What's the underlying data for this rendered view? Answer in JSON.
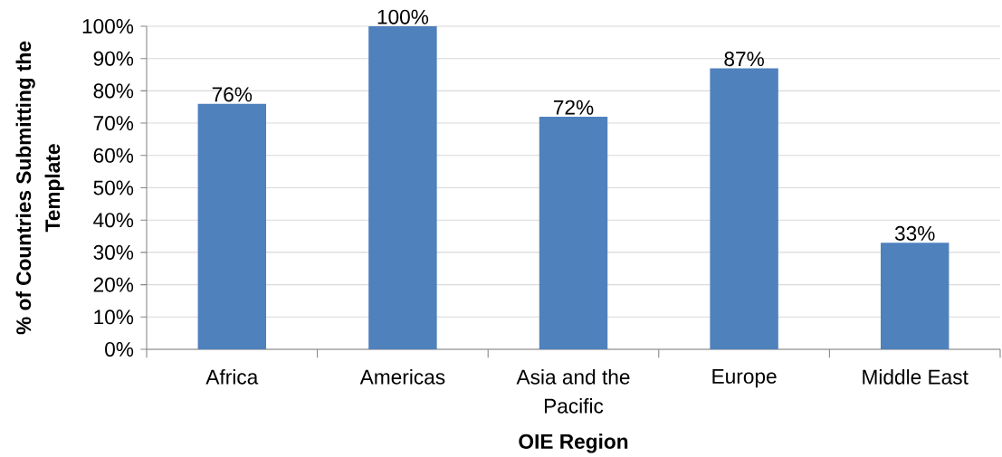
{
  "chart_data": {
    "type": "bar",
    "xlabel": "OIE Region",
    "ylabel": "% of Countries Submitting the Template",
    "categories": [
      "Africa",
      "Americas",
      "Asia and the Pacific",
      "Europe",
      "Middle East"
    ],
    "values": [
      76,
      100,
      72,
      87,
      33
    ],
    "value_labels": [
      "76%",
      "100%",
      "72%",
      "87%",
      "33%"
    ],
    "color": "#4f81bd",
    "ylim": [
      0,
      100
    ],
    "yticks": [
      {
        "value": 0,
        "label": "0%"
      },
      {
        "value": 10,
        "label": "10%"
      },
      {
        "value": 20,
        "label": "20%"
      },
      {
        "value": 30,
        "label": "30%"
      },
      {
        "value": 40,
        "label": "40%"
      },
      {
        "value": 50,
        "label": "50%"
      },
      {
        "value": 60,
        "label": "60%"
      },
      {
        "value": 70,
        "label": "70%"
      },
      {
        "value": 80,
        "label": "80%"
      },
      {
        "value": 90,
        "label": "90%"
      },
      {
        "value": 100,
        "label": "100%"
      }
    ],
    "grid": "y"
  }
}
